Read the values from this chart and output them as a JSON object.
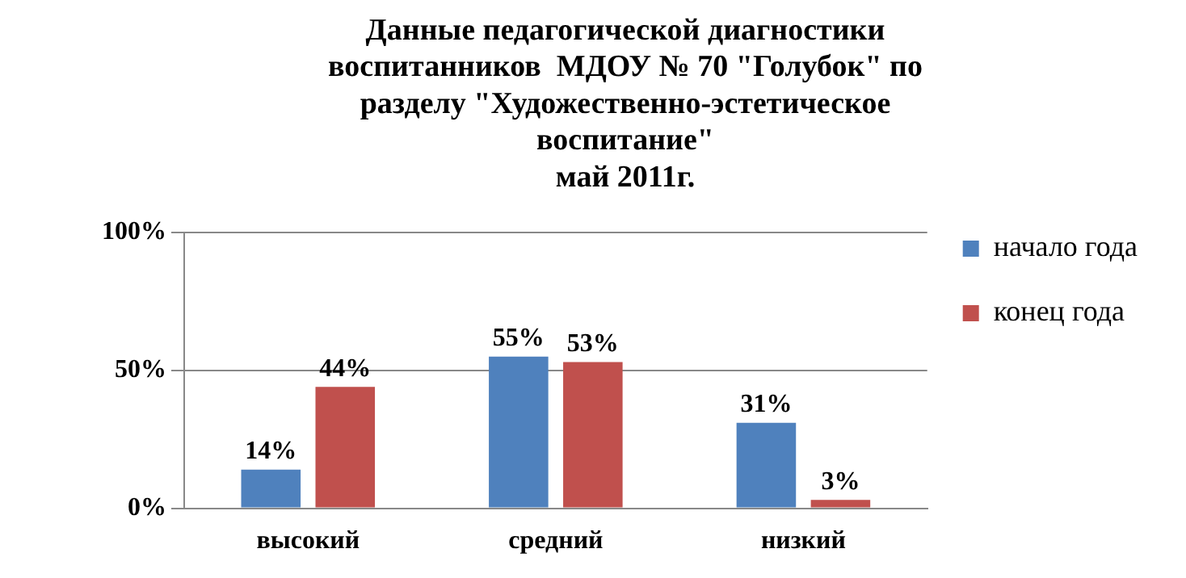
{
  "chart_data": {
    "type": "bar",
    "title": "Данные педагогической диагностики\nвоспитанников  МДОУ № 70 \"Голубок\" по\nразделу \"Художественно-эстетическое\nвоспитание\"\nмай 2011г.",
    "categories": [
      "высокий",
      "средний",
      "низкий"
    ],
    "series": [
      {
        "name": "начало года",
        "color": "#4f81bd",
        "values": [
          14,
          55,
          31
        ],
        "value_labels": [
          "14%",
          "55%",
          "31%"
        ]
      },
      {
        "name": "конец года",
        "color": "#c0504d",
        "values": [
          44,
          53,
          3
        ],
        "value_labels": [
          "44%",
          "53%",
          "3%"
        ]
      }
    ],
    "ylim": [
      0,
      100
    ],
    "yticks": [
      {
        "value": 0,
        "label": "0%"
      },
      {
        "value": 50,
        "label": "50%"
      },
      {
        "value": 100,
        "label": "100%"
      }
    ],
    "grid": "y",
    "legend": "right"
  }
}
